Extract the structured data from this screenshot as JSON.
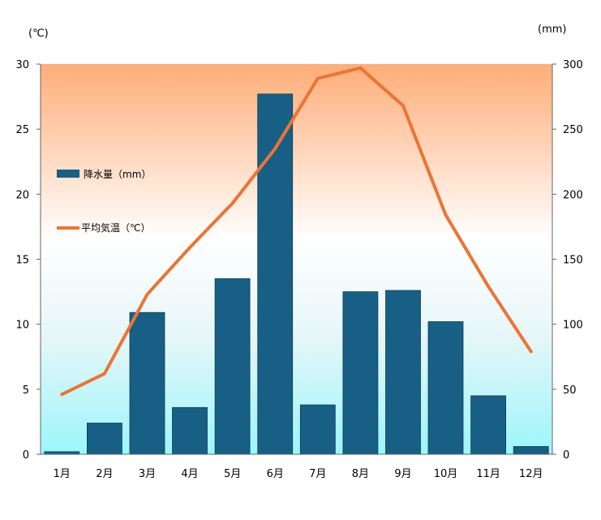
{
  "chart_data": {
    "type": "bar+line",
    "categories": [
      "1月",
      "2月",
      "3月",
      "4月",
      "5月",
      "6月",
      "7月",
      "8月",
      "9月",
      "10月",
      "11月",
      "12月"
    ],
    "series": [
      {
        "name": "降水量（mm）",
        "type": "bar",
        "axis": "right",
        "color": "#175f84",
        "values": [
          2,
          24,
          109,
          36,
          135,
          277,
          38,
          125,
          126,
          102,
          45,
          6
        ]
      },
      {
        "name": "平均気温（℃）",
        "type": "line",
        "axis": "left",
        "color": "#ec7433",
        "values": [
          4.6,
          6.2,
          12.3,
          15.9,
          19.3,
          23.5,
          28.9,
          29.7,
          26.8,
          18.4,
          12.9,
          7.9
        ]
      }
    ],
    "y_left": {
      "unit": "(℃)",
      "ticks": [
        "0",
        "5",
        "10",
        "15",
        "20",
        "25",
        "30"
      ],
      "range": [
        0,
        30
      ]
    },
    "y_right": {
      "unit": "(mm)",
      "ticks": [
        "0",
        "50",
        "100",
        "150",
        "200",
        "250",
        "300"
      ],
      "range": [
        0,
        300
      ]
    },
    "background_gradient": {
      "top": "#ffad78",
      "middle": "#ffffff",
      "bottom": "#9cf6fb"
    },
    "legend": [
      {
        "label": "降水量（mm）",
        "kind": "bar",
        "color": "#175f84"
      },
      {
        "label": "平均気温（℃）",
        "kind": "line",
        "color": "#ec7433"
      }
    ]
  }
}
